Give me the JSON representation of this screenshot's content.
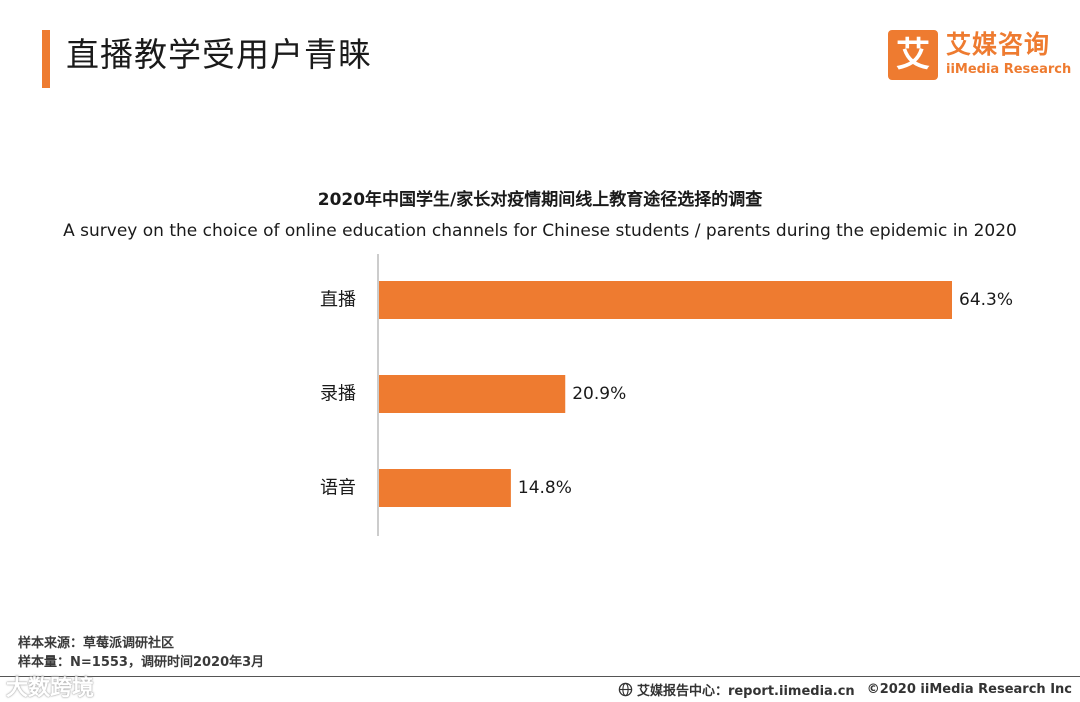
{
  "page": {
    "title": "直播教学受用户青睐"
  },
  "logo": {
    "mark": "艾",
    "name_cn": "艾媒咨询",
    "name_en": "iiMedia Research"
  },
  "colors": {
    "accent": "#ee7b30",
    "bar": "#ee7b30",
    "axis": "#999999"
  },
  "chart_data": {
    "type": "bar",
    "orientation": "horizontal",
    "title": "2020年中国学生/家长对疫情期间线上教育途径选择的调查",
    "subtitle": "A survey on the choice of online education channels for Chinese students / parents during the epidemic in 2020",
    "categories": [
      "直播",
      "录播",
      "语音"
    ],
    "values": [
      64.3,
      20.9,
      14.8
    ],
    "value_labels": [
      "64.3%",
      "20.9%",
      "14.8%"
    ],
    "unit": "%",
    "xlim": [
      0,
      64.3
    ],
    "grid": false,
    "legend": "none"
  },
  "footnotes": {
    "source": "样本来源：草莓派调研社区",
    "sample": "样本量：N=1553，调研时间2020年3月"
  },
  "footer": {
    "report_center": "艾媒报告中心：report.iimedia.cn",
    "copyright": "©2020  iiMedia Research  Inc",
    "globe_icon": "globe-icon"
  },
  "watermark": {
    "text": "大数跨境"
  }
}
